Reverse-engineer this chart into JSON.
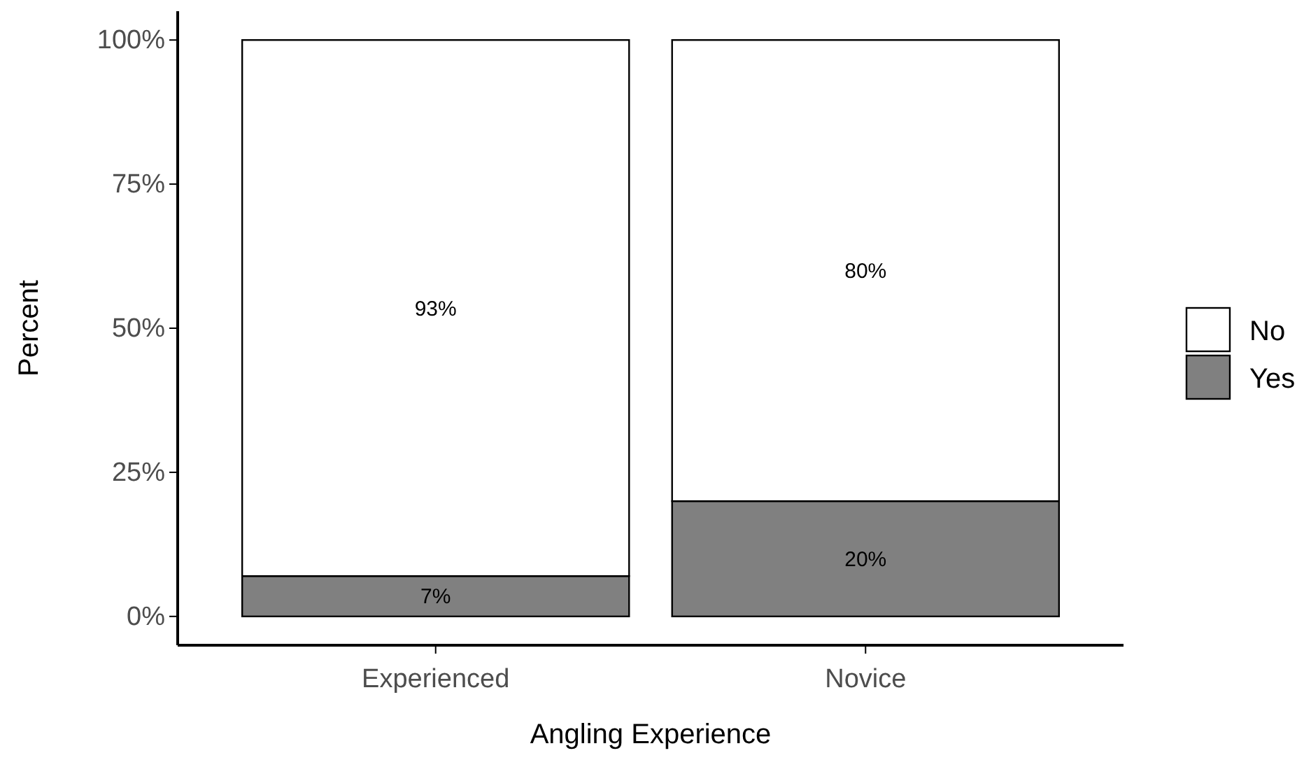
{
  "chart_data": {
    "type": "bar",
    "stacked": true,
    "xlabel": "Angling Experience",
    "ylabel": "Percent",
    "categories": [
      "Experienced",
      "Novice"
    ],
    "series": [
      {
        "name": "Yes",
        "color": "#808080",
        "values": [
          7,
          20
        ],
        "value_labels": [
          "7%",
          "20%"
        ]
      },
      {
        "name": "No",
        "color": "#ffffff",
        "values": [
          93,
          80
        ],
        "value_labels": [
          "93%",
          "80%"
        ]
      }
    ],
    "ylim": [
      -5,
      105
    ],
    "yticks": [
      {
        "value": 0,
        "label": "0%"
      },
      {
        "value": 25,
        "label": "25%"
      },
      {
        "value": 50,
        "label": "50%"
      },
      {
        "value": 75,
        "label": "75%"
      },
      {
        "value": 100,
        "label": "100%"
      }
    ],
    "grid": false,
    "legend": "right"
  }
}
